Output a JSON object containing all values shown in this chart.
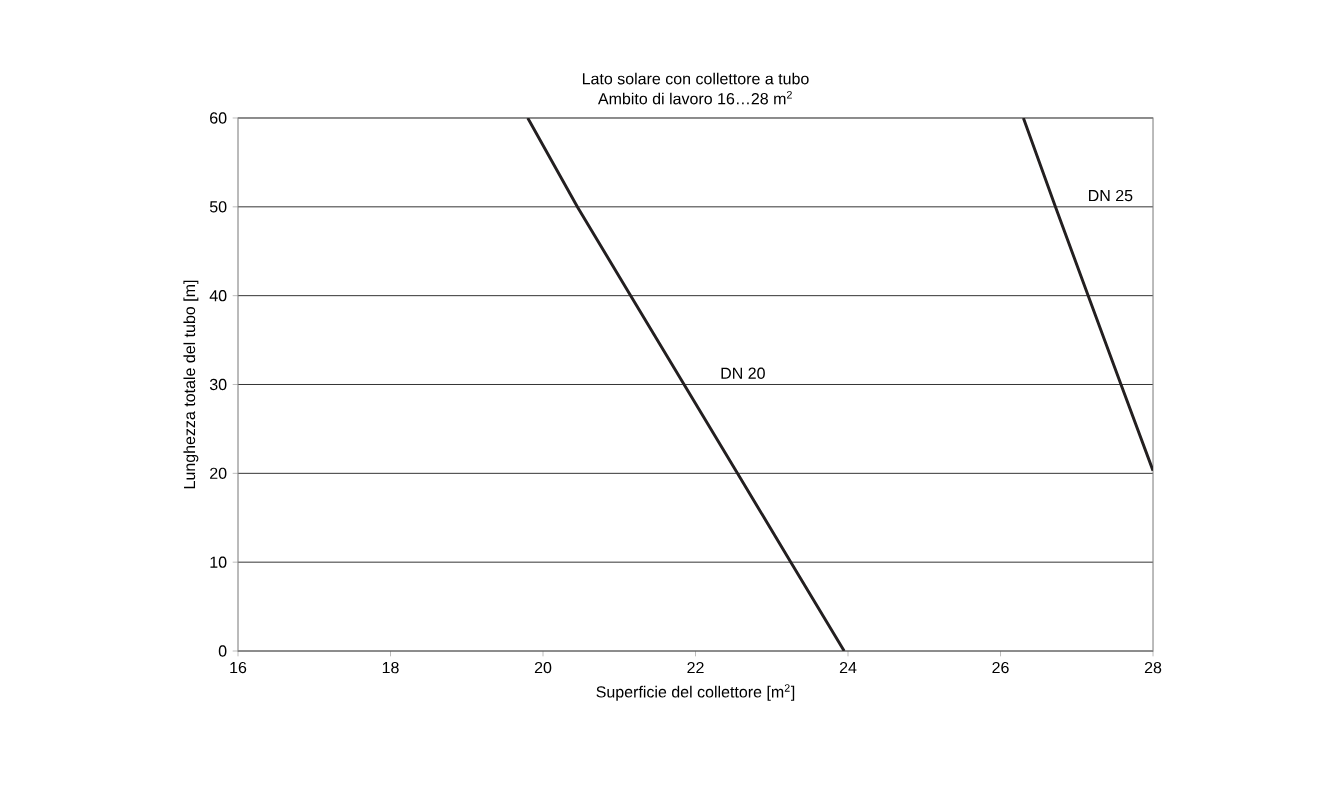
{
  "chart_data": {
    "type": "line",
    "title": "Lato solare con collettore a tubo",
    "subtitle": "Ambito di lavoro 16…28 m$^{2}$",
    "xlabel": "Superficie del collettore [m$^{2}$]",
    "ylabel": "Lunghezza totale del tubo [m]",
    "series": [
      {
        "name": "DN 20",
        "color": "#231f20",
        "x": [
          19.8,
          20.45,
          21.15,
          21.85,
          22.55,
          23.25,
          23.95
        ],
        "values": [
          60,
          50,
          40,
          30,
          20,
          10,
          0
        ]
      },
      {
        "name": "DN 25",
        "color": "#231f20",
        "x": [
          26.3,
          26.72,
          27.15,
          27.58,
          28.0
        ],
        "values": [
          60,
          50,
          40,
          30,
          20.3
        ]
      }
    ],
    "xlim": [
      16,
      28
    ],
    "xticks": [
      16,
      18,
      20,
      22,
      24,
      26,
      28
    ],
    "ylim": [
      0,
      60
    ],
    "yticks": [
      0,
      10,
      20,
      30,
      40,
      50,
      60
    ],
    "grid": "y",
    "marker": "none",
    "line_style": "solid"
  }
}
